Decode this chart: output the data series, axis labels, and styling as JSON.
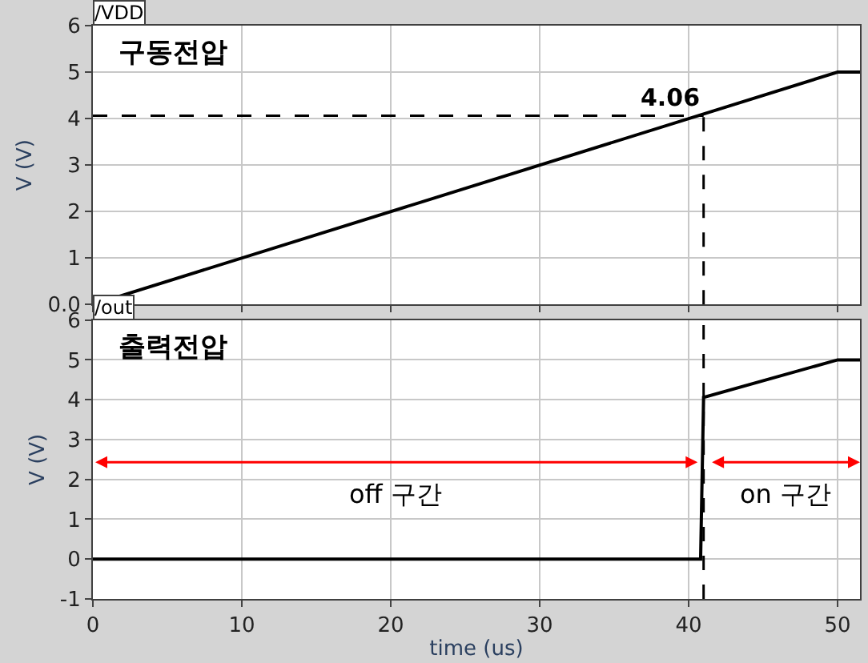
{
  "chart_data": [
    {
      "type": "line",
      "title": "/VDD",
      "subtitle": "구동전압",
      "ylabel": "V (V)",
      "x": [
        0,
        50,
        51.5
      ],
      "series": [
        {
          "color": "#000000",
          "values": [
            0,
            5,
            5
          ]
        }
      ],
      "xlim": [
        0,
        51.5
      ],
      "xticks": [
        0,
        10,
        20,
        30,
        40,
        50
      ],
      "ylim": [
        0,
        6
      ],
      "yticks": [
        {
          "value": 0,
          "label": "0.0"
        },
        1,
        2,
        3,
        4,
        5,
        6
      ],
      "tick_labels": "y",
      "grid": true,
      "ref_lines": [
        {
          "axis": "y",
          "value": 4.06,
          "label": "4.06",
          "line_style": "dashed",
          "color": "#000000"
        },
        {
          "axis": "x",
          "value": 41,
          "line_style": "dashed",
          "color": "#000000"
        }
      ]
    },
    {
      "type": "line",
      "title": "/out",
      "subtitle": "출력전압",
      "xlabel": "time (us)",
      "ylabel": "V (V)",
      "x": [
        0,
        40.8,
        41,
        50,
        51.5
      ],
      "series": [
        {
          "color": "#000000",
          "values": [
            0,
            0,
            4.06,
            5,
            5
          ]
        }
      ],
      "xlim": [
        0,
        51.5
      ],
      "xticks": [
        0,
        10,
        20,
        30,
        40,
        50
      ],
      "ylim": [
        -1,
        6
      ],
      "yticks": [
        -1,
        0,
        1,
        2,
        3,
        4,
        5,
        6
      ],
      "grid": true,
      "ref_lines": [
        {
          "axis": "x",
          "value": 41,
          "line_style": "dashed",
          "color": "#000000"
        }
      ],
      "annotations": [
        "off 구간",
        "on 구간"
      ]
    }
  ]
}
